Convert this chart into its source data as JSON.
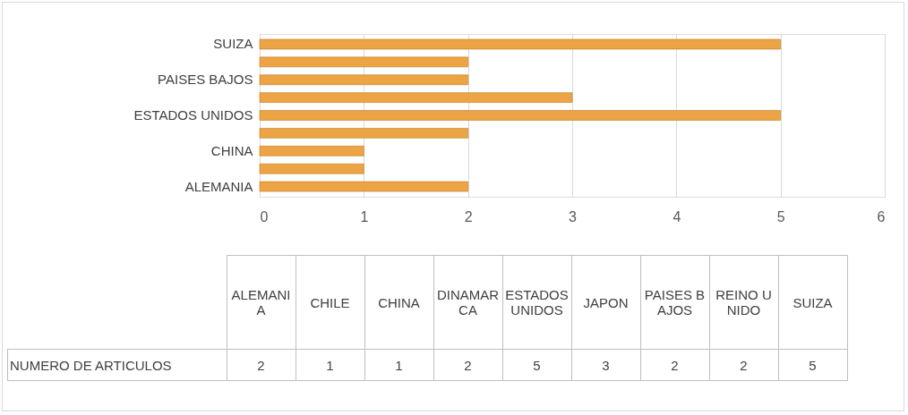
{
  "chart_data": [
    {
      "type": "bar",
      "orientation": "horizontal",
      "categories": [
        "SUIZA",
        null,
        "PAISES BAJOS",
        null,
        "ESTADOS UNIDOS",
        null,
        "CHINA",
        null,
        "ALEMANIA"
      ],
      "series": [
        {
          "color": "#eda445",
          "values": [
            5,
            2,
            2,
            3,
            5,
            2,
            1,
            1,
            2
          ]
        }
      ],
      "xlim": [
        0,
        6
      ],
      "xticks": [
        0,
        1,
        2,
        3,
        4,
        5,
        6
      ],
      "grid": "x"
    },
    {
      "type": "other",
      "categories": [
        "ALEMANIA",
        "CHILE",
        "CHINA",
        "DINAMARCA",
        "ESTADOS UNIDOS",
        "JAPON",
        "PAISES BAJOS",
        "REINO UNIDO",
        "SUIZA"
      ],
      "series": [
        {
          "name": "NUMERO DE ARTICULOS",
          "values": [
            2,
            1,
            1,
            2,
            5,
            3,
            2,
            2,
            5
          ]
        }
      ],
      "data_labels": true
    }
  ]
}
